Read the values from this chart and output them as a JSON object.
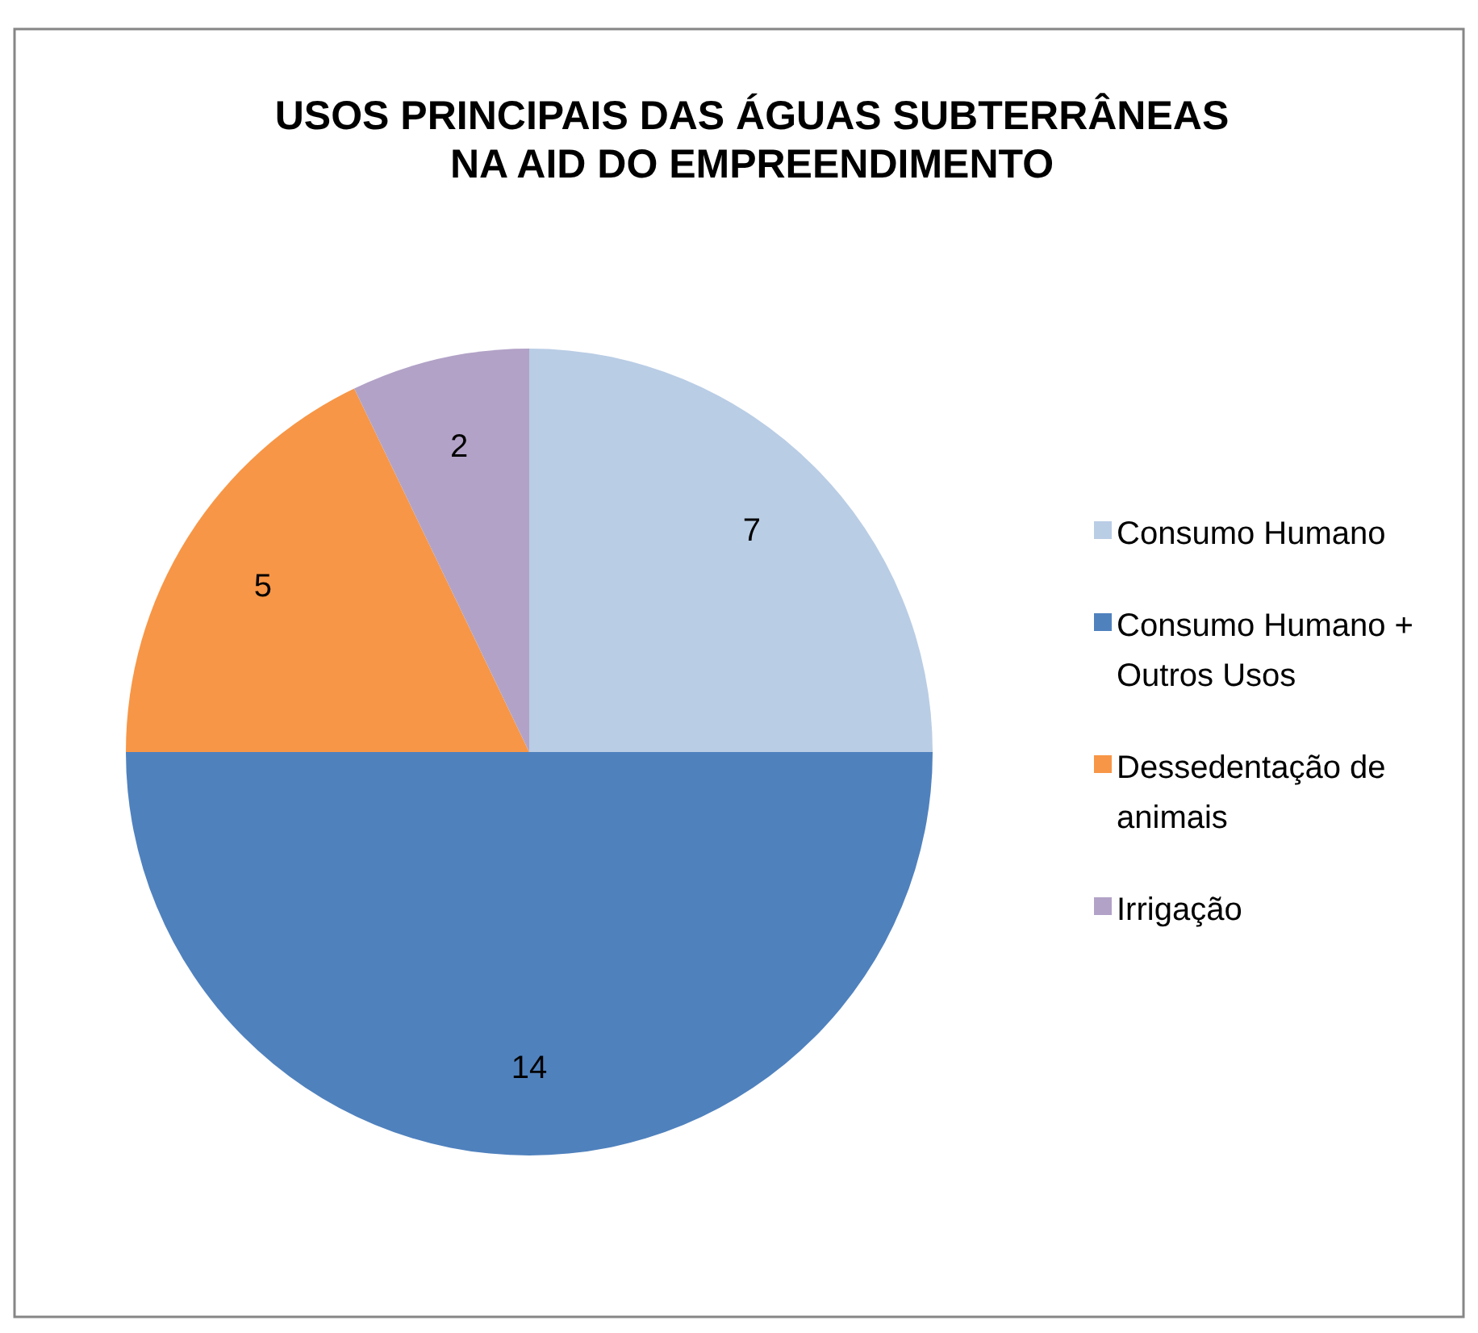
{
  "chart_data": {
    "type": "pie",
    "title": "USOS PRINCIPAIS DAS ÁGUAS SUBTERRÂNEAS\nNA AID DO EMPREENDIMENTO",
    "categories": [
      "Consumo Humano",
      "Consumo Humano + Outros Usos",
      "Dessedentação de animais",
      "Irrigação"
    ],
    "values": [
      7,
      14,
      5,
      2
    ],
    "colors": [
      "#b9cde5",
      "#4f81bd",
      "#f79646",
      "#b2a2c7"
    ],
    "data_labels": true,
    "legend": "right"
  }
}
